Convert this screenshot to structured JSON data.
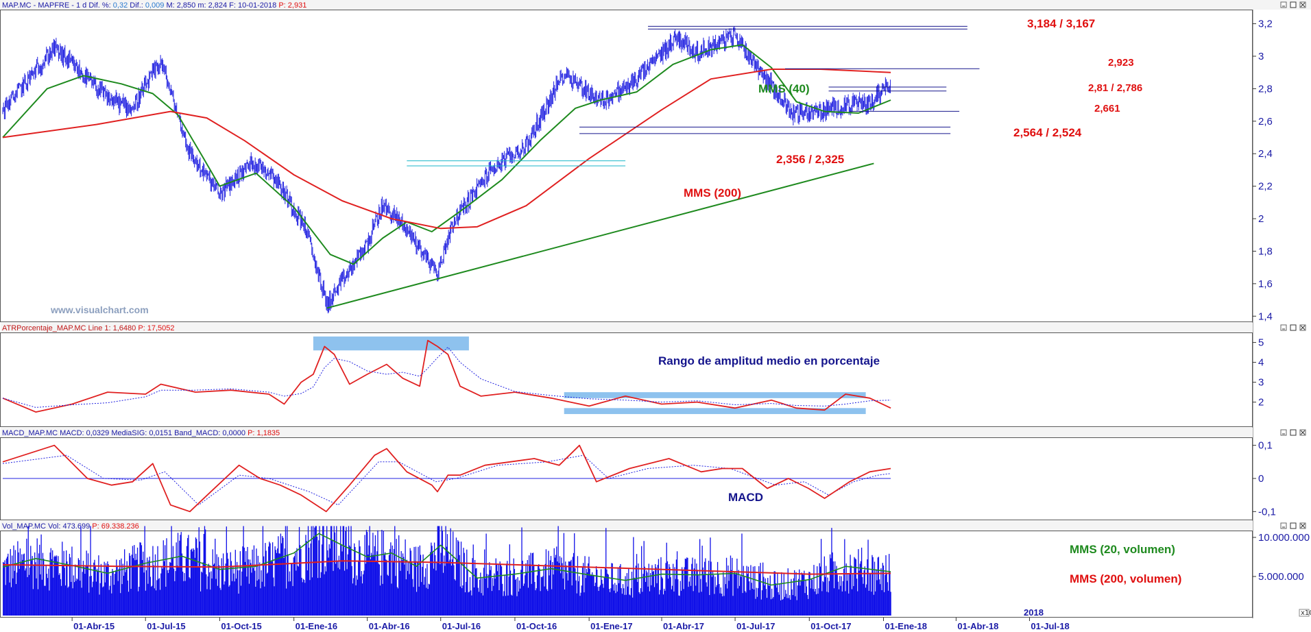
{
  "colors": {
    "price": "#2020e0",
    "mms40": "#1e8a1e",
    "mms200": "#e02020",
    "axis": "#1a1aa6",
    "annotation_red": "#e01010",
    "annotation_green": "#1e8a1e",
    "annotation_blue": "#14148c",
    "band": "#8ec2ee",
    "volume": "#1010e8"
  },
  "header": {
    "main": {
      "prefix": "MAP.MC - MAPFRE -  1 d  Dif. %: ",
      "dif_pct": "0,32",
      "dif_label": "  Dif.: ",
      "dif": "0,009",
      "rest": "  M: 2,850  m: 2,824  F: 10-01-2018  ",
      "last": "P: 2,931"
    },
    "atr": {
      "label": "ATRPorcentaje_MAP.MC  Line 1: 1,6480  ",
      "last": "P: 17,5052"
    },
    "macd": {
      "label": "MACD_MAP.MC  MACD: 0,0329  MediaSIG: 0,0151  Band_MACD: 0,0000  ",
      "last": "P: 1,1835"
    },
    "vol": {
      "label": "Vol_MAP.MC  Vol: 473.699  ",
      "last": "P: 69.338.236"
    }
  },
  "watermark": "www.visualchart.com",
  "annotations": {
    "mms40": "MMS (40)",
    "mms200": "MMS (200)",
    "atr_title": "Rango de amplitud medio en porcentaje",
    "macd_title": "MACD",
    "vol20": "MMS (20, volumen)",
    "vol200": "MMS (200, volumen)",
    "levels": [
      "3,184 / 3,167",
      "2,923",
      "2,81 / 2,786",
      "2,661",
      "2,564 / 2,524",
      "2,356 / 2,325"
    ]
  },
  "chart_data": [
    {
      "type": "candlestick",
      "panel": "price",
      "symbol": "MAP.MC - MAPFRE",
      "period": "1 d",
      "y_ticks": [
        "1,4",
        "1,6",
        "1,8",
        "2",
        "2,2",
        "2,4",
        "2,6",
        "2,8",
        "3",
        "3,2"
      ],
      "ylim": [
        1.38,
        3.27
      ],
      "x_ticks": [
        "01-Abr-15",
        "01-Jul-15",
        "01-Oct-15",
        "01-Ene-16",
        "01-Abr-16",
        "01-Jul-16",
        "01-Oct-16",
        "01-Ene-17",
        "01-Abr-17",
        "01-Jul-17",
        "01-Oct-17",
        "01-Ene-18",
        "01-Abr-18",
        "01-Jul-18"
      ],
      "x_tick_partial": "2018",
      "close_series_approx": {
        "x": [
          "2015-01-05",
          "2015-03-10",
          "2015-05-15",
          "2015-06-15",
          "2015-07-20",
          "2015-08-25",
          "2015-10-01",
          "2015-11-10",
          "2015-12-05",
          "2016-01-15",
          "2016-02-11",
          "2016-03-10",
          "2016-04-01",
          "2016-04-20",
          "2016-05-18",
          "2016-06-27",
          "2016-07-15",
          "2016-09-01",
          "2016-10-15",
          "2016-12-01",
          "2017-01-15",
          "2017-02-20",
          "2017-03-15",
          "2017-04-20",
          "2017-05-15",
          "2017-07-01",
          "2017-08-10",
          "2017-09-10",
          "2017-10-15",
          "2017-11-15",
          "2017-12-15",
          "2018-01-10"
        ],
        "values": [
          2.67,
          3.05,
          2.74,
          2.68,
          2.97,
          2.4,
          2.15,
          2.35,
          2.28,
          1.95,
          1.47,
          1.68,
          1.85,
          2.08,
          1.95,
          1.66,
          1.97,
          2.3,
          2.45,
          2.9,
          2.72,
          2.82,
          2.93,
          3.12,
          3.02,
          3.13,
          2.85,
          2.65,
          2.66,
          2.7,
          2.71,
          2.85
        ]
      },
      "series": [
        {
          "name": "MMS (40)",
          "x": [
            "2015-01-05",
            "2015-03-01",
            "2015-04-15",
            "2015-06-01",
            "2015-07-10",
            "2015-08-10",
            "2015-09-10",
            "2015-10-01",
            "2015-11-15",
            "2016-01-01",
            "2016-02-15",
            "2016-03-15",
            "2016-04-20",
            "2016-05-20",
            "2016-06-20",
            "2016-08-01",
            "2016-09-15",
            "2016-11-01",
            "2016-12-15",
            "2017-01-15",
            "2017-03-01",
            "2017-04-15",
            "2017-06-01",
            "2017-07-10",
            "2017-08-15",
            "2017-09-15",
            "2017-10-20",
            "2017-12-01",
            "2018-01-10"
          ],
          "values": [
            2.5,
            2.8,
            2.88,
            2.83,
            2.77,
            2.64,
            2.38,
            2.2,
            2.28,
            2.07,
            1.78,
            1.72,
            1.88,
            1.98,
            1.92,
            2.07,
            2.24,
            2.48,
            2.68,
            2.73,
            2.78,
            2.95,
            3.04,
            3.07,
            2.93,
            2.72,
            2.66,
            2.65,
            2.73
          ]
        },
        {
          "name": "MMS (200)",
          "x": [
            "2015-01-05",
            "2015-05-01",
            "2015-08-01",
            "2015-09-15",
            "2015-11-01",
            "2016-01-01",
            "2016-03-01",
            "2016-05-01",
            "2016-07-01",
            "2016-08-15",
            "2016-10-15",
            "2017-01-01",
            "2017-04-01",
            "2017-06-01",
            "2017-08-15",
            "2017-10-15",
            "2018-01-10"
          ],
          "values": [
            2.5,
            2.58,
            2.66,
            2.62,
            2.48,
            2.27,
            2.11,
            2.0,
            1.94,
            1.95,
            2.08,
            2.37,
            2.67,
            2.86,
            2.92,
            2.92,
            2.9
          ]
        }
      ],
      "horizontal_levels": [
        {
          "label": "3,184 / 3,167",
          "values": [
            3.184,
            3.167
          ]
        },
        {
          "label": "2,923",
          "values": [
            2.923
          ]
        },
        {
          "label": "2,81 / 2,786",
          "values": [
            2.81,
            2.786
          ]
        },
        {
          "label": "2,661",
          "values": [
            2.661
          ]
        },
        {
          "label": "2,564 / 2,524",
          "values": [
            2.564,
            2.524
          ]
        },
        {
          "label": "2,356 / 2,325",
          "values": [
            2.356,
            2.325
          ]
        }
      ],
      "trendline": {
        "from": [
          "2016-02-11",
          1.45
        ],
        "to": [
          "2017-12-20",
          2.34
        ]
      }
    },
    {
      "type": "line",
      "panel": "ATRPorcentaje",
      "y_ticks": [
        "2",
        "3",
        "4",
        "5"
      ],
      "ylim": [
        0.85,
        5.4
      ],
      "series": [
        {
          "name": "Line 1",
          "x": [
            "2015-01-05",
            "2015-02-15",
            "2015-04-01",
            "2015-05-15",
            "2015-07-01",
            "2015-07-20",
            "2015-09-01",
            "2015-10-15",
            "2015-12-01",
            "2015-12-20",
            "2016-01-10",
            "2016-01-25",
            "2016-02-08",
            "2016-02-20",
            "2016-03-10",
            "2016-04-01",
            "2016-04-25",
            "2016-05-15",
            "2016-06-05",
            "2016-06-15",
            "2016-06-27",
            "2016-07-10",
            "2016-07-25",
            "2016-08-20",
            "2016-10-01",
            "2016-11-15",
            "2017-01-01",
            "2017-02-15",
            "2017-04-01",
            "2017-05-15",
            "2017-07-01",
            "2017-08-15",
            "2017-09-15",
            "2017-10-20",
            "2017-11-15",
            "2017-12-15",
            "2018-01-10"
          ],
          "values": [
            2.2,
            1.5,
            1.9,
            2.5,
            2.4,
            2.9,
            2.5,
            2.6,
            2.4,
            1.9,
            3.0,
            3.4,
            4.8,
            4.4,
            2.9,
            3.4,
            3.9,
            3.2,
            2.8,
            5.1,
            4.8,
            4.4,
            2.8,
            2.3,
            2.5,
            2.2,
            1.8,
            2.3,
            1.9,
            2.0,
            1.7,
            2.1,
            1.7,
            1.6,
            2.4,
            2.2,
            1.7
          ]
        }
      ],
      "bands": [
        {
          "x": [
            "2016-01-25",
            "2016-08-05"
          ],
          "y": [
            4.6,
            5.3
          ]
        },
        {
          "x": [
            "2016-12-01",
            "2017-12-10"
          ],
          "y": [
            2.2,
            2.5
          ]
        },
        {
          "x": [
            "2016-12-01",
            "2017-12-10"
          ],
          "y": [
            1.4,
            1.7
          ]
        }
      ]
    },
    {
      "type": "line",
      "panel": "MACD",
      "y_ticks": [
        "-0,1",
        "0",
        "0,1"
      ],
      "ylim": [
        -0.12,
        0.12
      ],
      "series": [
        {
          "name": "MACD",
          "x": [
            "2015-01-05",
            "2015-03-10",
            "2015-04-20",
            "2015-05-20",
            "2015-06-15",
            "2015-07-10",
            "2015-08-01",
            "2015-08-25",
            "2015-09-20",
            "2015-10-25",
            "2015-11-20",
            "2015-12-15",
            "2016-01-10",
            "2016-02-10",
            "2016-03-10",
            "2016-04-10",
            "2016-04-25",
            "2016-05-20",
            "2016-06-20",
            "2016-06-27",
            "2016-07-10",
            "2016-07-25",
            "2016-08-25",
            "2016-09-25",
            "2016-10-25",
            "2016-11-25",
            "2016-12-20",
            "2017-01-10",
            "2017-02-20",
            "2017-04-10",
            "2017-05-20",
            "2017-06-15",
            "2017-07-10",
            "2017-08-10",
            "2017-09-05",
            "2017-09-30",
            "2017-10-20",
            "2017-11-20",
            "2017-12-15",
            "2018-01-10"
          ],
          "values": [
            0.05,
            0.1,
            0.0,
            -0.02,
            -0.01,
            0.045,
            -0.08,
            -0.1,
            -0.04,
            0.04,
            0.0,
            -0.02,
            -0.05,
            -0.1,
            -0.02,
            0.07,
            0.09,
            0.02,
            -0.02,
            -0.04,
            0.01,
            0.01,
            0.04,
            0.05,
            0.06,
            0.04,
            0.1,
            -0.01,
            0.03,
            0.06,
            0.02,
            0.03,
            0.03,
            -0.03,
            0.0,
            -0.03,
            -0.06,
            -0.01,
            0.02,
            0.03
          ]
        },
        {
          "name": "MediaSIG",
          "x": [
            "2015-01-05",
            "2015-03-25",
            "2015-05-10",
            "2015-06-25",
            "2015-07-25",
            "2015-09-05",
            "2015-10-25",
            "2015-12-01",
            "2016-01-20",
            "2016-02-25",
            "2016-04-15",
            "2016-05-10",
            "2016-06-25",
            "2016-07-20",
            "2016-09-10",
            "2016-11-10",
            "2016-12-25",
            "2017-01-25",
            "2017-03-15",
            "2017-05-10",
            "2017-06-25",
            "2017-08-20",
            "2017-09-25",
            "2017-10-25",
            "2017-11-25",
            "2017-12-25",
            "2018-01-10"
          ],
          "values": [
            0.045,
            0.07,
            0.0,
            -0.005,
            0.02,
            -0.08,
            0.01,
            0.0,
            -0.04,
            -0.08,
            0.05,
            0.05,
            -0.01,
            0.0,
            0.04,
            0.05,
            0.07,
            0.0,
            0.03,
            0.04,
            0.03,
            -0.02,
            -0.01,
            -0.05,
            -0.01,
            0.01,
            0.015
          ]
        }
      ]
    },
    {
      "type": "bar",
      "panel": "Volumen",
      "y_ticks": [
        "5.000.000",
        "10.000.000"
      ],
      "ylim": [
        0,
        10700000
      ],
      "series": [
        {
          "name": "MMS (20, volumen)",
          "x": [
            "2015-01-05",
            "2015-02-15",
            "2015-04-01",
            "2015-05-15",
            "2015-07-01",
            "2015-08-15",
            "2015-10-01",
            "2015-11-15",
            "2016-01-01",
            "2016-02-01",
            "2016-03-01",
            "2016-04-01",
            "2016-05-01",
            "2016-06-01",
            "2016-07-01",
            "2016-08-15",
            "2016-10-01",
            "2016-11-15",
            "2017-01-01",
            "2017-02-15",
            "2017-04-01",
            "2017-05-15",
            "2017-07-01",
            "2017-08-15",
            "2017-10-01",
            "2017-11-15",
            "2018-01-10"
          ],
          "values": [
            6200000,
            7300000,
            6400000,
            5400000,
            6700000,
            7600000,
            5900000,
            6300000,
            8000000,
            10500000,
            9000000,
            7500000,
            8000000,
            6300000,
            9000000,
            4800000,
            5300000,
            6000000,
            5200000,
            4500000,
            5300000,
            5200000,
            5400000,
            3900000,
            4600000,
            6300000,
            5600000
          ]
        },
        {
          "name": "MMS (200, volumen)",
          "x": [
            "2015-01-05",
            "2015-06-01",
            "2015-10-01",
            "2016-03-01",
            "2016-07-01",
            "2016-12-01",
            "2017-06-01",
            "2017-10-01",
            "2018-01-10"
          ],
          "values": [
            6500000,
            6300000,
            6200000,
            7000000,
            6800000,
            6300000,
            5700000,
            5300000,
            5400000
          ]
        }
      ]
    }
  ]
}
